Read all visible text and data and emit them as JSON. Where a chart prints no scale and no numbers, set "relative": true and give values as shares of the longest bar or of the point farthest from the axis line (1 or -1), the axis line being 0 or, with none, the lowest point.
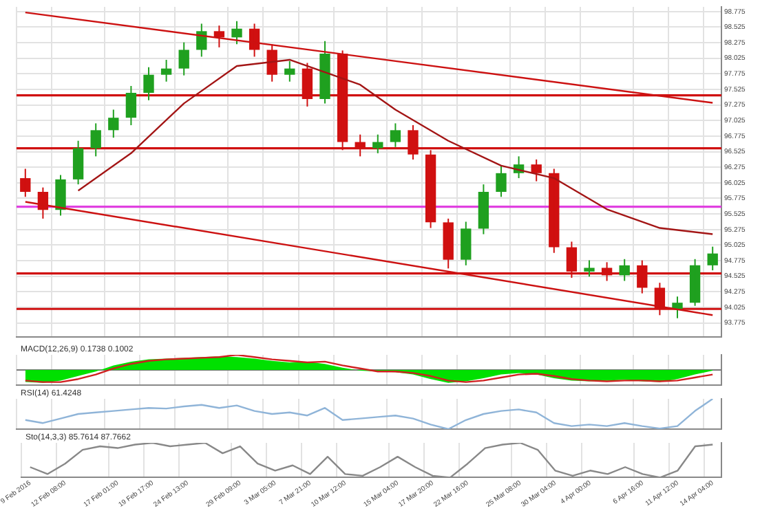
{
  "chart_data": [
    {
      "type": "candlestick",
      "categories": [
        null,
        null,
        null,
        null,
        null,
        null,
        null,
        null,
        null,
        null,
        null,
        null,
        null,
        null,
        null,
        null,
        null,
        null,
        null,
        null,
        null,
        null,
        null,
        null,
        null,
        null,
        null,
        null,
        null,
        null,
        null,
        null,
        null,
        null,
        null,
        null,
        null,
        null,
        null,
        null
      ],
      "ohlc": [
        [
          96.1,
          96.25,
          95.8,
          95.88
        ],
        [
          95.88,
          95.95,
          95.45,
          95.59
        ],
        [
          95.59,
          96.15,
          95.5,
          96.08
        ],
        [
          96.08,
          96.7,
          96.0,
          96.58
        ],
        [
          96.58,
          96.98,
          96.45,
          96.87
        ],
        [
          96.87,
          97.2,
          96.75,
          97.07
        ],
        [
          97.07,
          97.58,
          96.95,
          97.47
        ],
        [
          97.47,
          97.88,
          97.35,
          97.76
        ],
        [
          97.76,
          98.0,
          97.65,
          97.86
        ],
        [
          97.86,
          98.28,
          97.75,
          98.16
        ],
        [
          98.16,
          98.58,
          98.05,
          98.46
        ],
        [
          98.46,
          98.55,
          98.2,
          98.36
        ],
        [
          98.36,
          98.62,
          98.25,
          98.5
        ],
        [
          98.5,
          98.58,
          98.05,
          98.16
        ],
        [
          98.16,
          98.25,
          97.65,
          97.76
        ],
        [
          97.76,
          97.98,
          97.65,
          97.86
        ],
        [
          97.86,
          97.95,
          97.25,
          97.37
        ],
        [
          97.37,
          98.3,
          97.3,
          98.1
        ],
        [
          98.1,
          98.15,
          96.55,
          96.68
        ],
        [
          96.68,
          96.8,
          96.45,
          96.58
        ],
        [
          96.58,
          96.8,
          96.5,
          96.68
        ],
        [
          96.68,
          96.98,
          96.6,
          96.87
        ],
        [
          96.87,
          96.95,
          96.4,
          96.48
        ],
        [
          96.48,
          96.55,
          95.3,
          95.39
        ],
        [
          95.39,
          95.45,
          94.65,
          94.79
        ],
        [
          94.79,
          95.4,
          94.7,
          95.29
        ],
        [
          95.29,
          96.0,
          95.2,
          95.88
        ],
        [
          95.88,
          96.3,
          95.8,
          96.18
        ],
        [
          96.18,
          96.45,
          96.1,
          96.32
        ],
        [
          96.32,
          96.4,
          96.05,
          96.18
        ],
        [
          96.18,
          96.25,
          94.9,
          94.99
        ],
        [
          94.99,
          95.08,
          94.5,
          94.6
        ],
        [
          94.6,
          94.78,
          94.52,
          94.66
        ],
        [
          94.66,
          94.75,
          94.45,
          94.54
        ],
        [
          94.54,
          94.8,
          94.45,
          94.7
        ],
        [
          94.7,
          94.78,
          94.25,
          94.34
        ],
        [
          94.34,
          94.42,
          93.9,
          94.0
        ],
        [
          94.0,
          94.2,
          93.85,
          94.1
        ],
        [
          94.1,
          94.8,
          94.05,
          94.7
        ],
        [
          94.7,
          95.0,
          94.62,
          94.89
        ]
      ],
      "colors": [
        "#d01010",
        "#d01010",
        "#1fa01f",
        "#1fa01f",
        "#1fa01f",
        "#1fa01f",
        "#1fa01f",
        "#1fa01f",
        "#1fa01f",
        "#1fa01f",
        "#1fa01f",
        "#d01010",
        "#1fa01f",
        "#d01010",
        "#d01010",
        "#1fa01f",
        "#d01010",
        "#1fa01f",
        "#d01010",
        "#d01010",
        "#1fa01f",
        "#1fa01f",
        "#d01010",
        "#d01010",
        "#d01010",
        "#1fa01f",
        "#1fa01f",
        "#1fa01f",
        "#1fa01f",
        "#d01010",
        "#d01010",
        "#d01010",
        "#1fa01f",
        "#d01010",
        "#1fa01f",
        "#d01010",
        "#d01010",
        "#1fa01f",
        "#1fa01f",
        "#1fa01f"
      ],
      "series": [
        {
          "type": "line",
          "color": "#a31515",
          "values": [
            null,
            null,
            null,
            95.9,
            null,
            null,
            96.5,
            null,
            null,
            97.3,
            null,
            null,
            97.9,
            null,
            null,
            98.0,
            null,
            null,
            null,
            97.6,
            null,
            97.2,
            null,
            null,
            96.7,
            null,
            null,
            96.3,
            null,
            null,
            96.1,
            null,
            null,
            95.6,
            null,
            null,
            95.3,
            null,
            null,
            95.2
          ]
        },
        {
          "type": "line",
          "color": "#cc1111",
          "values": [
            98.76,
            null,
            null,
            null,
            null,
            null,
            null,
            null,
            null,
            null,
            null,
            null,
            null,
            null,
            null,
            null,
            null,
            null,
            null,
            null,
            null,
            null,
            null,
            null,
            null,
            null,
            null,
            null,
            null,
            null,
            null,
            null,
            null,
            null,
            null,
            null,
            null,
            null,
            null,
            97.31
          ]
        },
        {
          "type": "line",
          "color": "#cc1111",
          "values": [
            95.72,
            null,
            null,
            null,
            null,
            null,
            null,
            null,
            null,
            null,
            null,
            null,
            null,
            null,
            null,
            null,
            null,
            null,
            null,
            null,
            null,
            null,
            null,
            null,
            null,
            null,
            null,
            null,
            null,
            null,
            null,
            null,
            null,
            null,
            null,
            null,
            null,
            null,
            null,
            93.9
          ]
        }
      ],
      "ylim": [
        93.55,
        98.85
      ],
      "yticks": [
        93.775,
        94.025,
        94.275,
        94.525,
        94.775,
        95.025,
        95.275,
        95.525,
        95.775,
        96.025,
        96.275,
        96.525,
        96.775,
        97.025,
        97.275,
        97.525,
        97.775,
        98.025,
        98.275,
        98.525,
        98.775
      ],
      "ref_lines": [
        {
          "axis": "y",
          "value": 97.43,
          "color": "#d01010"
        },
        {
          "axis": "y",
          "value": 96.58,
          "color": "#d01010"
        },
        {
          "axis": "y",
          "value": 95.64,
          "color": "#e040e0"
        },
        {
          "axis": "y",
          "value": 94.57,
          "color": "#d01010"
        },
        {
          "axis": "y",
          "value": 94.0,
          "color": "#d01010"
        }
      ],
      "grid": true,
      "tick_labels": "y"
    },
    {
      "type": "area",
      "relative": true,
      "title": "MACD(12,26,9) 0.1738 0.1002",
      "categories": [
        null,
        null,
        null,
        null,
        null,
        null,
        null,
        null,
        null,
        null,
        null,
        null,
        null,
        null,
        null,
        null,
        null,
        null,
        null,
        null,
        null,
        null,
        null,
        null,
        null,
        null,
        null,
        null,
        null,
        null,
        null,
        null,
        null,
        null,
        null,
        null,
        null,
        null,
        null,
        null
      ],
      "series": [
        {
          "type": "area",
          "color": "#00e000",
          "values": [
            -0.8,
            -0.85,
            -0.7,
            -0.4,
            -0.1,
            0.3,
            0.55,
            0.7,
            0.75,
            0.8,
            0.85,
            0.9,
            0.85,
            0.75,
            0.6,
            0.5,
            0.55,
            0.4,
            0.15,
            -0.05,
            -0.1,
            -0.15,
            -0.3,
            -0.6,
            -0.85,
            -0.75,
            -0.55,
            -0.3,
            -0.2,
            -0.3,
            -0.55,
            -0.7,
            -0.75,
            -0.7,
            -0.65,
            -0.75,
            -0.8,
            -0.6,
            -0.3,
            -0.05
          ]
        },
        {
          "type": "line",
          "color": "#d02020",
          "values": [
            -0.7,
            -0.8,
            -0.8,
            -0.6,
            -0.3,
            0.1,
            0.4,
            0.6,
            0.7,
            0.75,
            0.8,
            0.85,
            1,
            0.85,
            0.7,
            0.6,
            0.5,
            0.55,
            0.3,
            0.1,
            -0.1,
            -0.1,
            -0.2,
            -0.4,
            -0.7,
            -0.8,
            -0.7,
            -0.5,
            -0.3,
            -0.25,
            -0.4,
            -0.6,
            -0.7,
            -0.75,
            -0.7,
            -0.7,
            -0.75,
            -0.7,
            -0.5,
            -0.3
          ]
        }
      ],
      "grid": "x",
      "tick_labels": false
    },
    {
      "type": "line",
      "relative": true,
      "title": "RSI(14) 61.4248",
      "categories": [
        null,
        null,
        null,
        null,
        null,
        null,
        null,
        null,
        null,
        null,
        null,
        null,
        null,
        null,
        null,
        null,
        null,
        null,
        null,
        null,
        null,
        null,
        null,
        null,
        null,
        null,
        null,
        null,
        null,
        null,
        null,
        null,
        null,
        null,
        null,
        null,
        null,
        null,
        null,
        null
      ],
      "series": [
        {
          "color": "#8fb4d8",
          "values": [
            0.3,
            0.2,
            0.35,
            0.5,
            0.55,
            0.6,
            0.65,
            0.7,
            0.68,
            0.75,
            0.8,
            0.7,
            0.78,
            0.6,
            0.5,
            0.55,
            0.45,
            0.7,
            0.3,
            0.35,
            0.4,
            0.45,
            0.35,
            0.15,
            0,
            0.3,
            0.5,
            0.6,
            0.65,
            0.55,
            0.2,
            0.1,
            0.15,
            0.1,
            0.2,
            0.1,
            0.02,
            0.1,
            0.6,
            1
          ]
        }
      ],
      "grid": "x",
      "tick_labels": false
    },
    {
      "type": "line",
      "relative": true,
      "title": "Sto(14,3,3) 85.7614 87.7662",
      "categories": [
        "9 Feb 2016",
        null,
        "12 Feb 08:00",
        null,
        null,
        "17 Feb 01:00",
        null,
        "19 Feb 17:00",
        null,
        "24 Feb 13:00",
        null,
        null,
        "29 Feb 09:00",
        null,
        "3 Mar 05:00",
        null,
        "7 Mar 21:00",
        null,
        "10 Mar 12:00",
        null,
        null,
        "15 Mar 04:00",
        null,
        "17 Mar 20:00",
        null,
        "22 Mar 16:00",
        null,
        null,
        "25 Mar 08:00",
        null,
        "30 Mar 04:00",
        null,
        "4 Apr 00:00",
        null,
        null,
        "6 Apr 16:00",
        null,
        "11 Apr 12:00",
        null,
        "14 Apr 04:00"
      ],
      "series": [
        {
          "color": "#888888",
          "values": [
            0.3,
            0.1,
            0.4,
            0.8,
            0.9,
            0.85,
            0.95,
            1,
            0.9,
            0.95,
            1,
            0.7,
            0.9,
            0.4,
            0.2,
            0.35,
            0.1,
            0.6,
            0.1,
            0.05,
            0.3,
            0.6,
            0.3,
            0.05,
            0,
            0.4,
            0.85,
            0.95,
            1,
            0.8,
            0.2,
            0.05,
            0.2,
            0.1,
            0.3,
            0.1,
            0,
            0.2,
            0.9,
            0.95
          ]
        }
      ],
      "grid": "x",
      "tick_labels": "x"
    }
  ]
}
